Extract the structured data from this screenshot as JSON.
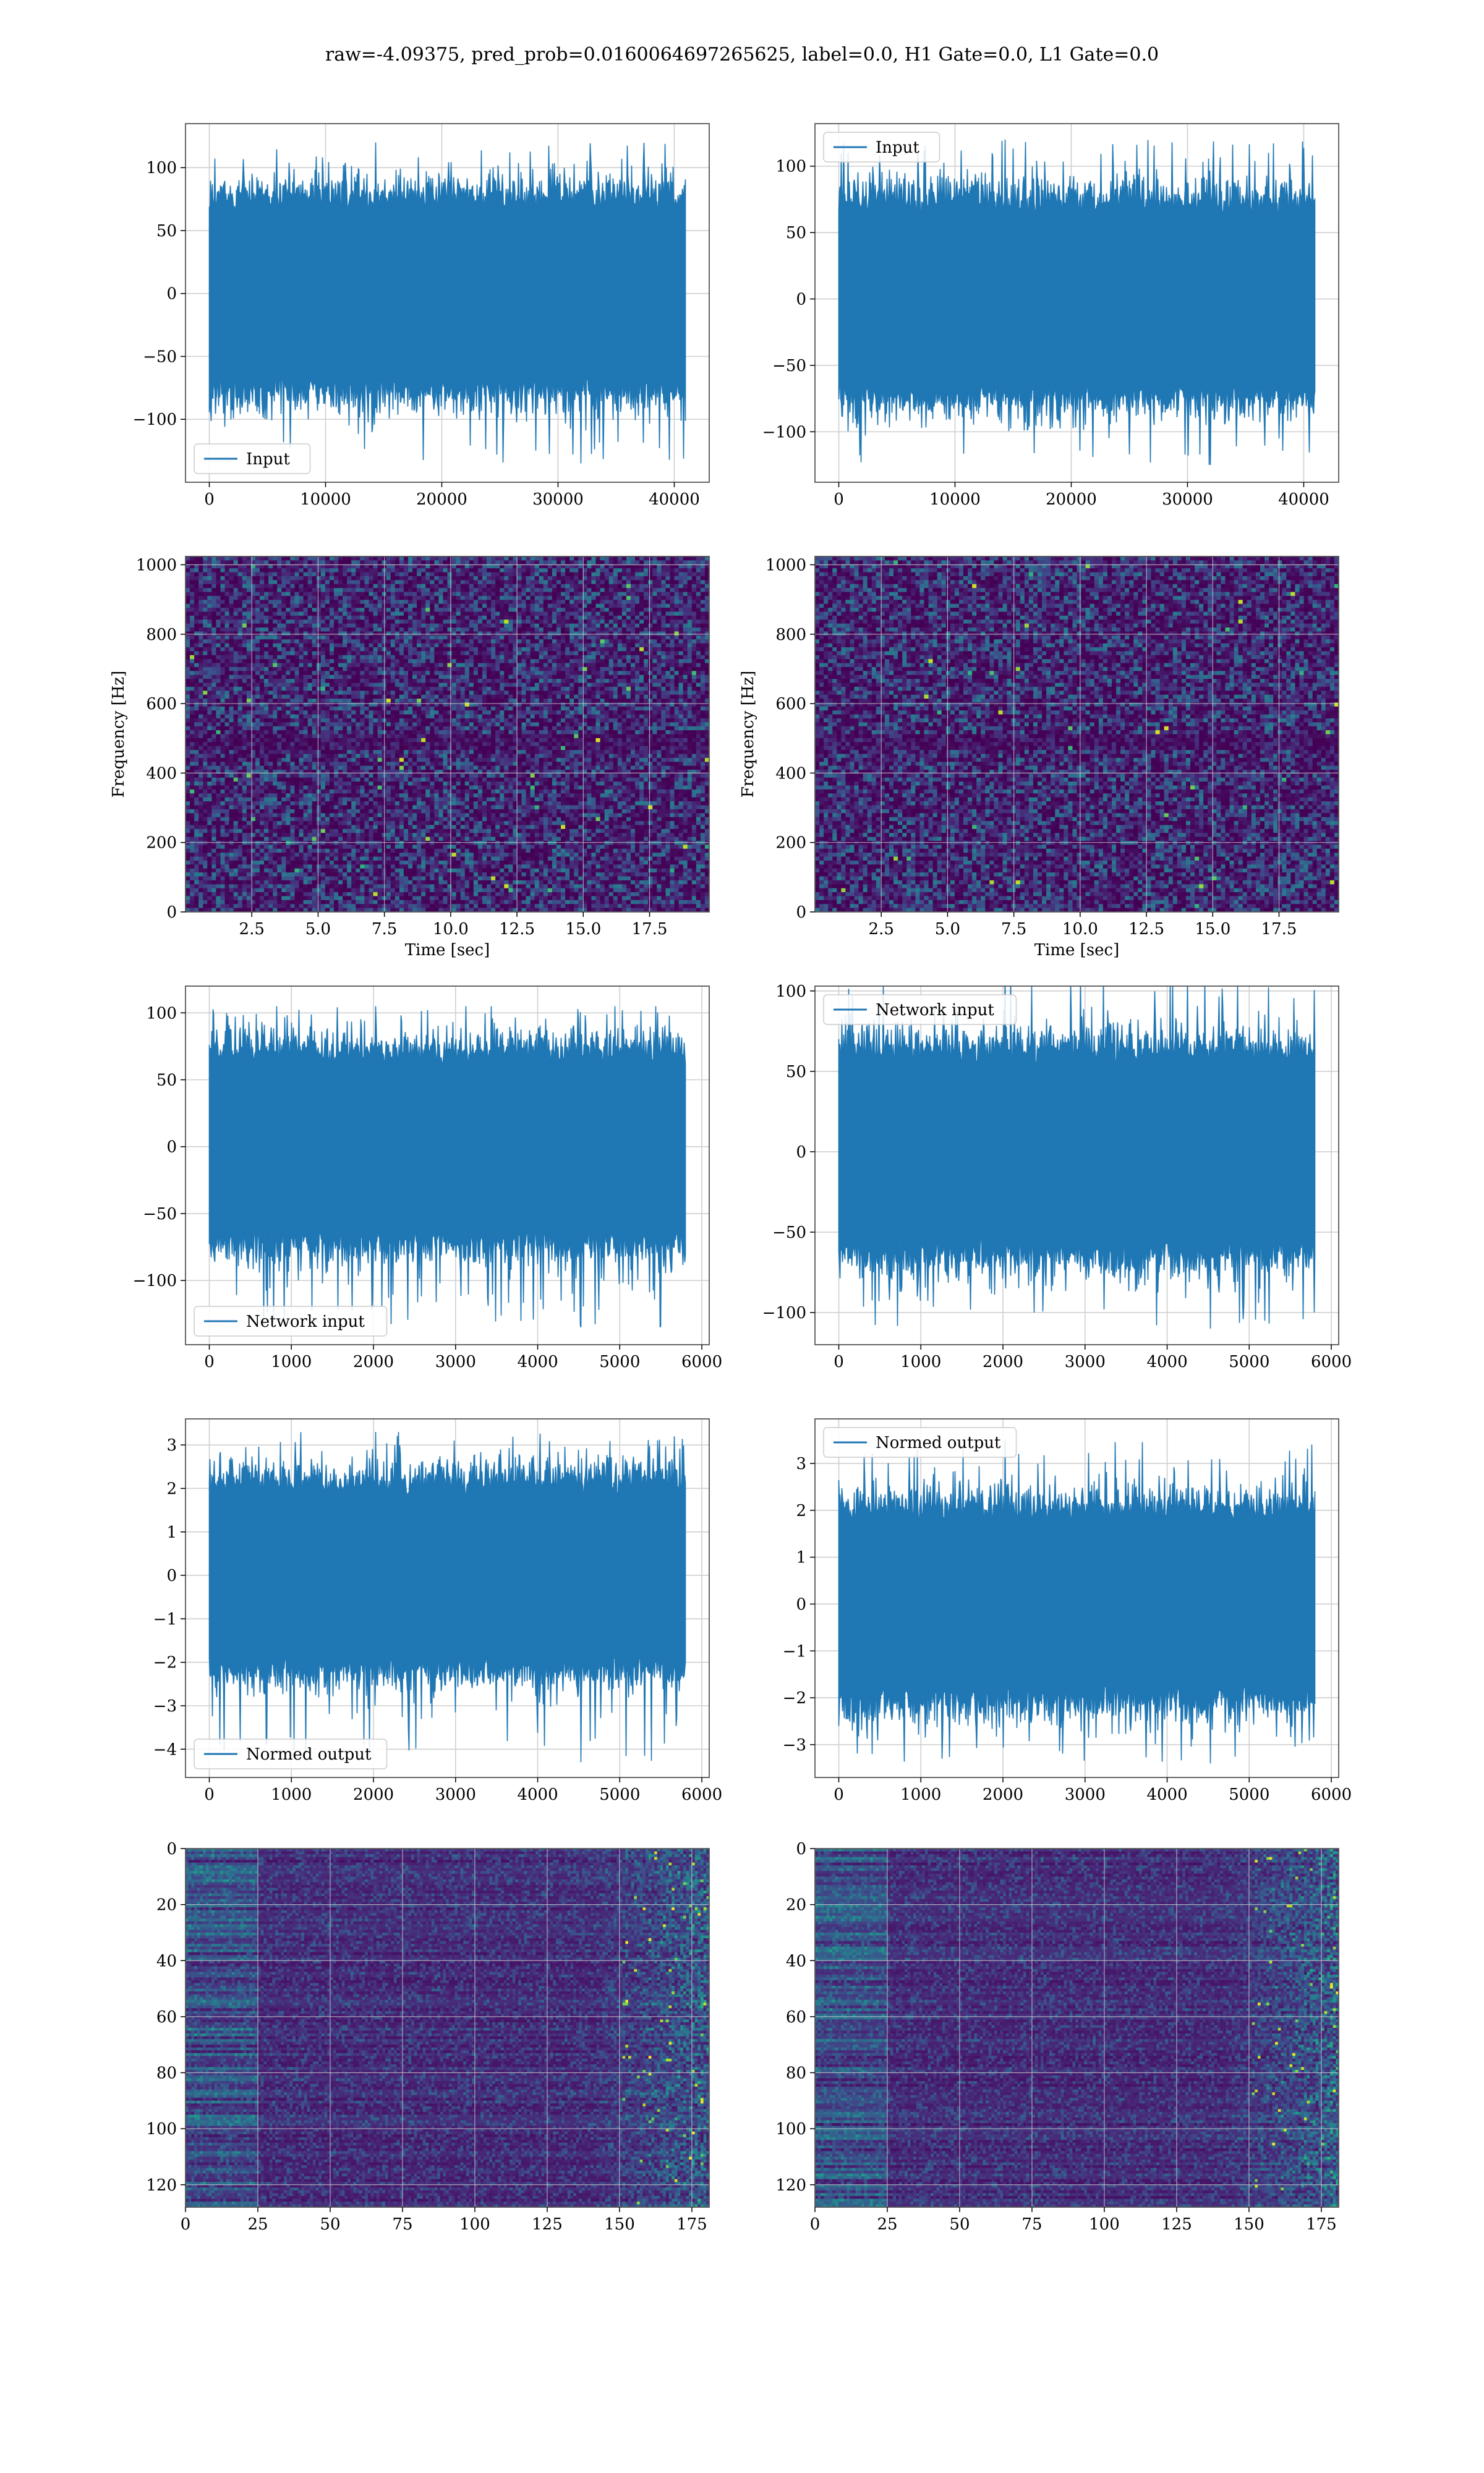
{
  "figure": {
    "suptitle": "raw=-4.09375, pred_prob=0.0160064697265625, label=0.0, H1 Gate=0.0, L1 Gate=0.0",
    "line_color": "#1f77b4",
    "grid_color": "#cfcfcf",
    "spine_color": "#555555"
  },
  "chart_data": [
    {
      "type": "line",
      "panel": "row1-left",
      "series": [
        {
          "name": "Input",
          "n": 40960,
          "y_min": -135,
          "y_max": 120,
          "envelope": 75
        }
      ],
      "x_ticks": [
        0,
        10000,
        20000,
        30000,
        40000
      ],
      "y_ticks": [
        -100,
        -50,
        0,
        50,
        100
      ],
      "xlim": [
        -2048,
        43008
      ],
      "ylim": [
        -150,
        135
      ],
      "legend": "lower left",
      "grid": true
    },
    {
      "type": "line",
      "panel": "row1-right",
      "series": [
        {
          "name": "Input",
          "n": 40960,
          "y_min": -125,
          "y_max": 120,
          "envelope": 72
        }
      ],
      "x_ticks": [
        0,
        10000,
        20000,
        30000,
        40000
      ],
      "y_ticks": [
        -100,
        -50,
        0,
        50,
        100
      ],
      "xlim": [
        -2048,
        43008
      ],
      "ylim": [
        -138,
        132
      ],
      "legend": "upper left",
      "grid": true
    },
    {
      "type": "heatmap",
      "panel": "row2-left",
      "xlabel": "Time [sec]",
      "ylabel": "Frequency [Hz]",
      "x_ticks": [
        2.5,
        5.0,
        7.5,
        10.0,
        12.5,
        15.0,
        17.5
      ],
      "y_ticks": [
        0,
        200,
        400,
        600,
        800,
        1000
      ],
      "xlim": [
        0,
        19.75
      ],
      "ylim": [
        0,
        1024
      ],
      "grid": true
    },
    {
      "type": "heatmap",
      "panel": "row2-right",
      "xlabel": "Time [sec]",
      "ylabel": "Frequency [Hz]",
      "x_ticks": [
        2.5,
        5.0,
        7.5,
        10.0,
        12.5,
        15.0,
        17.5
      ],
      "y_ticks": [
        0,
        200,
        400,
        600,
        800,
        1000
      ],
      "xlim": [
        0,
        19.75
      ],
      "ylim": [
        0,
        1024
      ],
      "grid": true
    },
    {
      "type": "line",
      "panel": "row3-left",
      "series": [
        {
          "name": "Network input",
          "n": 5800,
          "y_min": -135,
          "y_max": 105,
          "envelope": 70
        }
      ],
      "x_ticks": [
        0,
        1000,
        2000,
        3000,
        4000,
        5000,
        6000
      ],
      "y_ticks": [
        -100,
        -50,
        0,
        50,
        100
      ],
      "xlim": [
        -290,
        6090
      ],
      "ylim": [
        -148,
        120
      ],
      "legend": "lower left",
      "grid": true
    },
    {
      "type": "line",
      "panel": "row3-right",
      "series": [
        {
          "name": "Network input",
          "n": 5800,
          "y_min": -110,
          "y_max": 112,
          "envelope": 62
        }
      ],
      "x_ticks": [
        0,
        1000,
        2000,
        3000,
        4000,
        5000,
        6000
      ],
      "y_ticks": [
        -100,
        -50,
        0,
        50,
        100
      ],
      "xlim": [
        -290,
        6090
      ],
      "ylim": [
        -120,
        103
      ],
      "legend": "upper left",
      "grid": true
    },
    {
      "type": "line",
      "panel": "row4-left",
      "series": [
        {
          "name": "Normed output",
          "n": 5800,
          "y_min": -4.3,
          "y_max": 3.3,
          "envelope": 2.1
        }
      ],
      "x_ticks": [
        0,
        1000,
        2000,
        3000,
        4000,
        5000,
        6000
      ],
      "y_ticks": [
        -4,
        -3,
        -2,
        -1,
        0,
        1,
        2,
        3
      ],
      "xlim": [
        -290,
        6090
      ],
      "ylim": [
        -4.65,
        3.6
      ],
      "legend": "lower left",
      "grid": true
    },
    {
      "type": "line",
      "panel": "row4-right",
      "series": [
        {
          "name": "Normed output",
          "n": 5800,
          "y_min": -3.4,
          "y_max": 3.5,
          "envelope": 2.0
        }
      ],
      "x_ticks": [
        0,
        1000,
        2000,
        3000,
        4000,
        5000,
        6000
      ],
      "y_ticks": [
        -3,
        -2,
        -1,
        0,
        1,
        2,
        3
      ],
      "xlim": [
        -290,
        6090
      ],
      "ylim": [
        -3.7,
        3.95
      ],
      "legend": "upper left",
      "grid": true
    },
    {
      "type": "heatmap",
      "panel": "row5-left",
      "x_ticks": [
        0,
        25,
        50,
        75,
        100,
        125,
        150,
        175
      ],
      "y_ticks": [
        0,
        20,
        40,
        60,
        80,
        100,
        120
      ],
      "xlim": [
        0,
        181
      ],
      "ylim": [
        128,
        0
      ],
      "grid": true
    },
    {
      "type": "heatmap",
      "panel": "row5-right",
      "x_ticks": [
        0,
        25,
        50,
        75,
        100,
        125,
        150,
        175
      ],
      "y_ticks": [
        0,
        20,
        40,
        60,
        80,
        100,
        120
      ],
      "xlim": [
        0,
        181
      ],
      "ylim": [
        128,
        0
      ],
      "grid": true
    }
  ]
}
